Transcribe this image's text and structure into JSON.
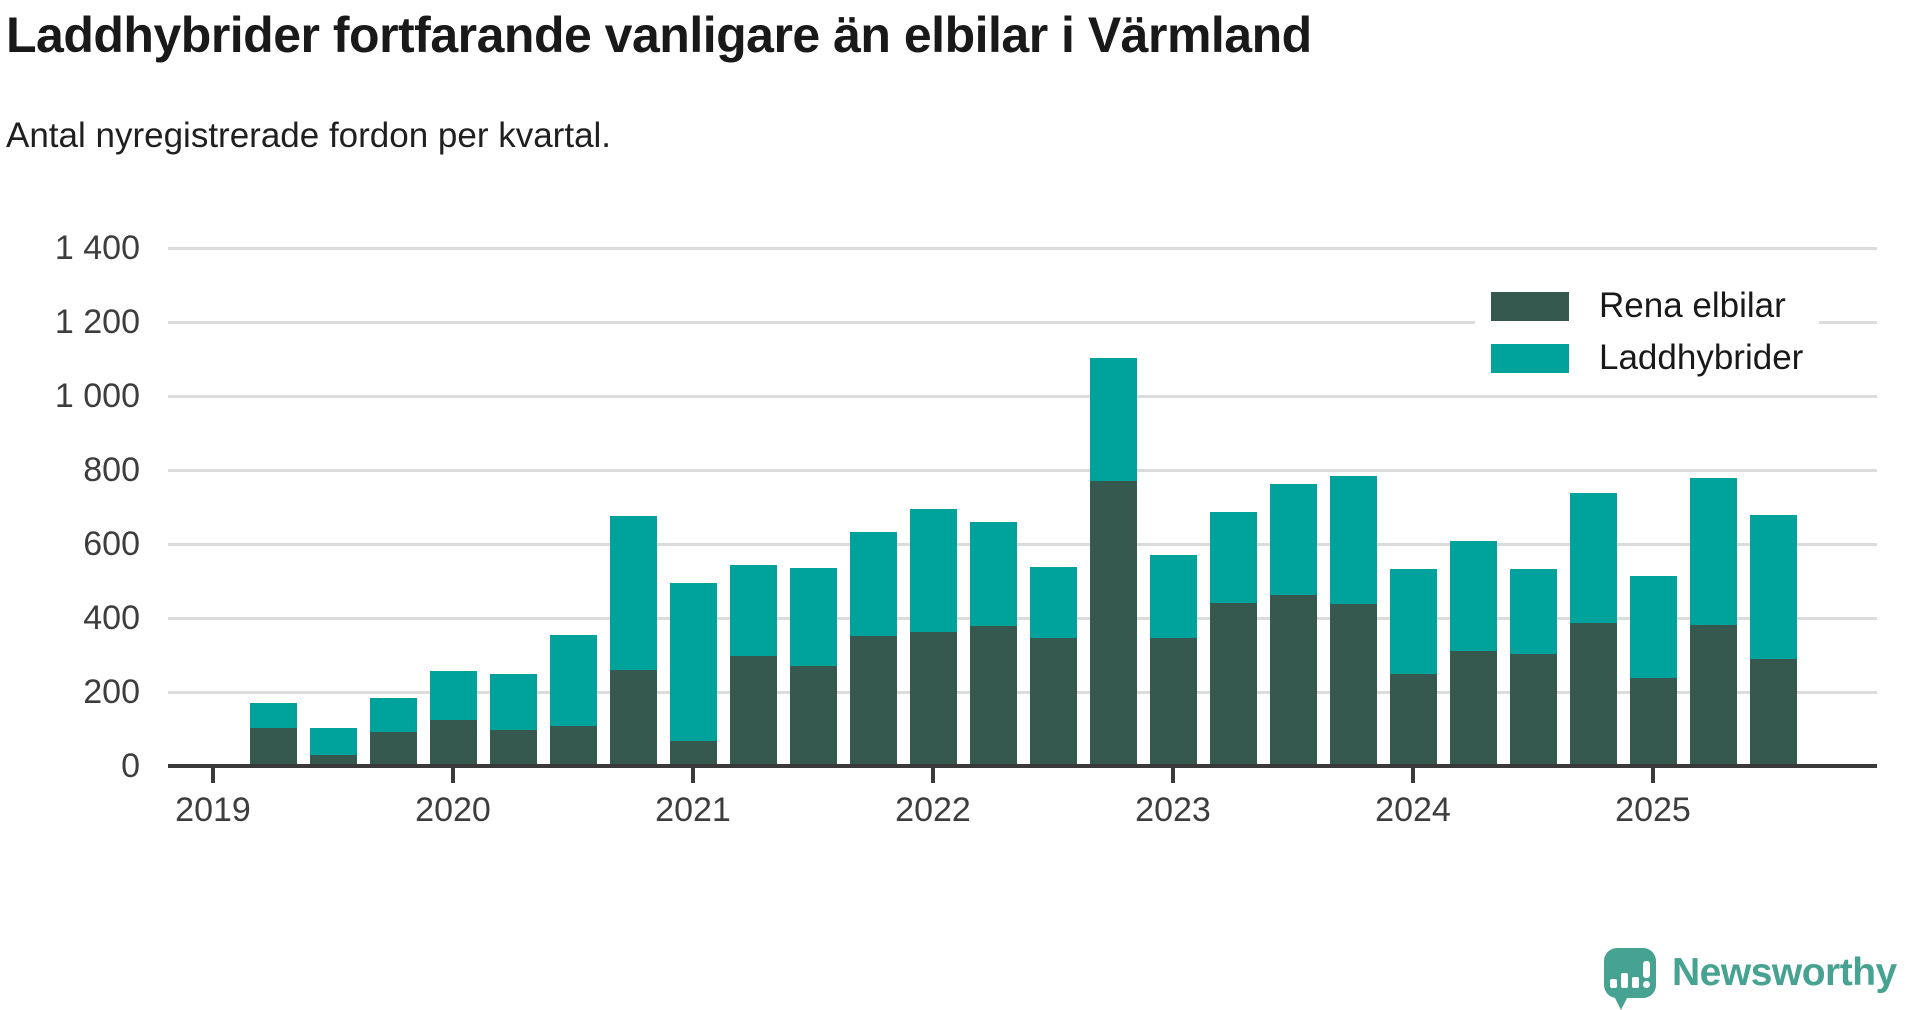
{
  "header": {
    "title": "Laddhybrider fortfarande vanligare än elbilar i Värmland",
    "subtitle": "Antal nyregistrerade fordon per kvartal."
  },
  "legend": {
    "items": [
      {
        "label": "Rena elbilar",
        "color": "#35594F"
      },
      {
        "label": "Laddhybrider",
        "color": "#00A39B"
      }
    ]
  },
  "footer": {
    "brand": "Newsworthy",
    "brand_color": "#46a392"
  },
  "chart_data": {
    "type": "bar",
    "stacked": true,
    "title": "Laddhybrider fortfarande vanligare än elbilar i Värmland",
    "subtitle": "Antal nyregistrerade fordon per kvartal.",
    "x_unit": "quarter",
    "categories": [
      "2019 Q2",
      "2019 Q3",
      "2019 Q4",
      "2020 Q1",
      "2020 Q2",
      "2020 Q3",
      "2020 Q4",
      "2021 Q1",
      "2021 Q2",
      "2021 Q3",
      "2021 Q4",
      "2022 Q1",
      "2022 Q2",
      "2022 Q3",
      "2022 Q4",
      "2023 Q1",
      "2023 Q2",
      "2023 Q3",
      "2023 Q4",
      "2024 Q1",
      "2024 Q2",
      "2024 Q3",
      "2024 Q4",
      "2025 Q1",
      "2025 Q2",
      "2025 Q3"
    ],
    "series": [
      {
        "name": "Rena elbilar",
        "color": "#35594F",
        "values": [
          102,
          30,
          91,
          124,
          97,
          107,
          260,
          68,
          297,
          271,
          352,
          361,
          379,
          345,
          770,
          345,
          440,
          462,
          437,
          248,
          312,
          303,
          386,
          237,
          381,
          289
        ]
      },
      {
        "name": "Laddhybrider",
        "color": "#00A39B",
        "values": [
          68,
          73,
          94,
          132,
          152,
          246,
          415,
          427,
          245,
          265,
          280,
          334,
          281,
          194,
          333,
          225,
          246,
          300,
          348,
          284,
          295,
          230,
          352,
          276,
          397,
          389
        ]
      }
    ],
    "x_tick_labels": [
      "2019",
      "2020",
      "2021",
      "2022",
      "2023",
      "2024",
      "2025"
    ],
    "x_tick_quarter_index": [
      0,
      4,
      8,
      12,
      16,
      20,
      24
    ],
    "first_bar_quarter_index": 1,
    "y_ticks": [
      0,
      200,
      400,
      600,
      800,
      1000,
      1200,
      1400
    ],
    "y_tick_labels": [
      "0",
      "200",
      "400",
      "600",
      "800",
      "1 000",
      "1 200",
      "1 400"
    ],
    "ylim": [
      0,
      1400
    ],
    "grid": "horizontal",
    "legend_position": "top-right"
  }
}
